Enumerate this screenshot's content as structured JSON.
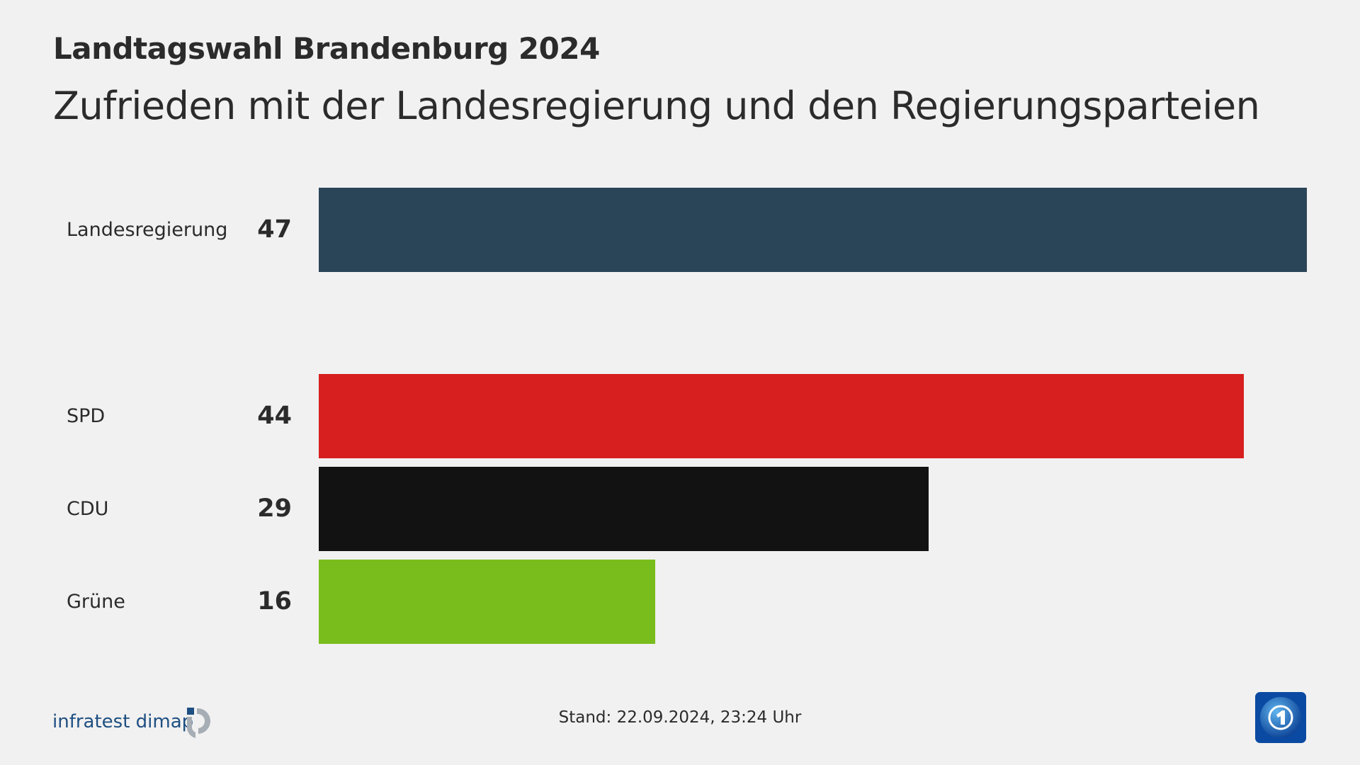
{
  "header": {
    "title": "Landtagswahl Brandenburg 2024",
    "subtitle": "Zufrieden mit der Landesregierung und den Regierungsparteien"
  },
  "chart_data": {
    "type": "bar",
    "orientation": "horizontal",
    "categories": [
      "Landesregierung",
      "SPD",
      "CDU",
      "Grüne"
    ],
    "values": [
      47,
      44,
      29,
      16
    ],
    "value_labels": [
      "47",
      "44",
      "29",
      "16"
    ],
    "colors": [
      "#2b4558",
      "#d71f1f",
      "#121212",
      "#79bd1c"
    ],
    "xlim": [
      0,
      47
    ],
    "grid": false
  },
  "footer": {
    "stand": "Stand:  22.09.2024, 23:24 Uhr"
  },
  "logos": {
    "pollster": "infratest dimap",
    "broadcaster": "tagesschau"
  }
}
